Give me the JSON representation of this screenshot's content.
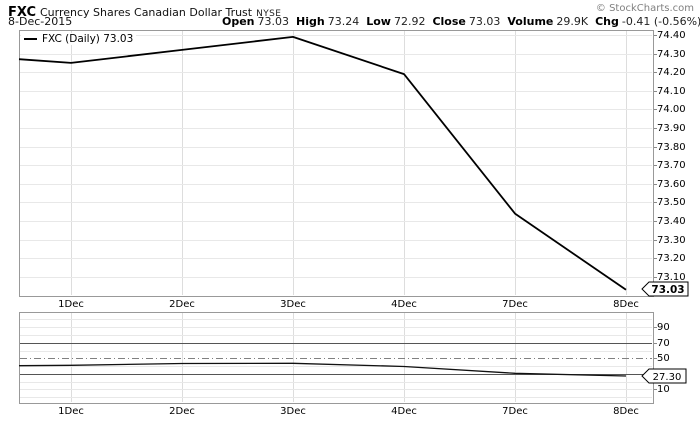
{
  "header": {
    "symbol": "FXC",
    "name": "Currency Shares Canadian Dollar Trust",
    "exchange": "NYSE",
    "date": "8-Dec-2015",
    "copyright": "© StockCharts.com",
    "quote": [
      {
        "label": "Open",
        "value": "73.03"
      },
      {
        "label": "High",
        "value": "73.24"
      },
      {
        "label": "Low",
        "value": "72.92"
      },
      {
        "label": "Close",
        "value": "73.03"
      },
      {
        "label": "Volume",
        "value": "29.9K"
      },
      {
        "label": "Chg",
        "value": "-0.41 (-0.56%)"
      }
    ],
    "chg_color": "#990000"
  },
  "main_chart": {
    "legend": "FXC (Daily) 73.03",
    "last_price_box": "73.03"
  },
  "indicator": {
    "last_value_box": "27.30"
  },
  "chart_data": [
    {
      "type": "line",
      "title": "FXC (Daily)",
      "x": [
        "30-Nov",
        "1-Dec",
        "2-Dec",
        "3-Dec",
        "4-Dec",
        "7-Dec",
        "8-Dec"
      ],
      "values": [
        74.27,
        74.25,
        74.32,
        74.39,
        74.19,
        73.44,
        73.03
      ],
      "x_tick_labels": [
        "1Dec",
        "2Dec",
        "3Dec",
        "4Dec",
        "7Dec",
        "8Dec"
      ],
      "y_ticks": [
        "74.40",
        "74.30",
        "74.20",
        "74.10",
        "74.00",
        "73.90",
        "73.80",
        "73.70",
        "73.60",
        "73.50",
        "73.40",
        "73.30",
        "73.20",
        "73.10"
      ],
      "ylim": [
        72.99,
        74.43
      ],
      "last_value": 73.03,
      "line_color": "#000000",
      "grid": true,
      "legend_position": "top-left"
    },
    {
      "type": "line",
      "title": "momentum oscillator (RSI-style)",
      "x": [
        "30-Nov",
        "1-Dec",
        "2-Dec",
        "3-Dec",
        "4-Dec",
        "7-Dec",
        "8-Dec"
      ],
      "values": [
        40.5,
        41.0,
        43.3,
        43.6,
        39.5,
        30.7,
        27.3
      ],
      "x_tick_labels": [
        "1Dec",
        "2Dec",
        "3Dec",
        "4Dec",
        "7Dec",
        "8Dec"
      ],
      "labeled_ticks": [
        "90",
        "70",
        "50",
        "10"
      ],
      "grid_values": [
        0,
        10,
        20,
        40,
        60,
        80,
        90,
        100
      ],
      "overbought_level": 70,
      "oversold_level": 30,
      "mid_level": 50,
      "ylim": [
        0,
        100
      ],
      "last_value": 27.3,
      "line_color": "#111111",
      "grid": true
    }
  ]
}
